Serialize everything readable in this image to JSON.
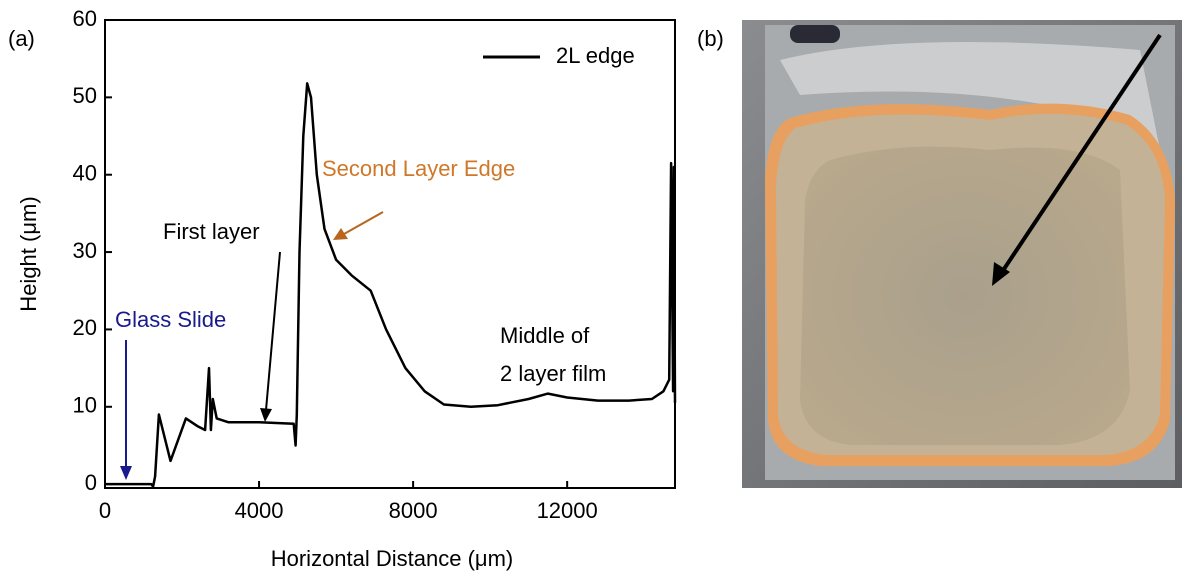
{
  "chart_data": {
    "type": "line",
    "panel_label": "(a)",
    "image_label": "(b)",
    "xlabel": "Horizontal Distance (μm)",
    "ylabel": "Height (μm)",
    "xlim": [
      0,
      14800
    ],
    "ylim": [
      -0.5,
      60
    ],
    "xticks": [
      0,
      4000,
      8000,
      12000
    ],
    "yticks": [
      0,
      10,
      20,
      30,
      40,
      50,
      60
    ],
    "legend": "upper right",
    "annotations": [
      "Glass Slide",
      "First layer",
      "Second Layer Edge",
      "Middle of",
      "2 layer film"
    ],
    "series": [
      {
        "name": "2L edge",
        "color": "#000000",
        "x": [
          0,
          1200,
          1250,
          1300,
          1400,
          1700,
          2100,
          2400,
          2600,
          2700,
          2750,
          2800,
          2900,
          3200,
          4000,
          4900,
          4950,
          4980,
          5050,
          5150,
          5250,
          5350,
          5500,
          5700,
          6000,
          6400,
          6900,
          7300,
          7800,
          8300,
          8800,
          9500,
          10200,
          11000,
          11500,
          12000,
          12800,
          13600,
          14200,
          14500,
          14650,
          14700,
          14750,
          14770,
          14800
        ],
        "values": [
          0,
          0,
          -0.3,
          1,
          9,
          3,
          8.5,
          7.5,
          7,
          15,
          7,
          11,
          8.5,
          8,
          8,
          7.8,
          5,
          9,
          30,
          45,
          51.8,
          50,
          40,
          33,
          29,
          27,
          25,
          20,
          15,
          12,
          10.3,
          10,
          10.2,
          11,
          11.7,
          11.2,
          10.8,
          10.8,
          11,
          12,
          13.5,
          41.5,
          12,
          41,
          10.5
        ]
      }
    ]
  }
}
